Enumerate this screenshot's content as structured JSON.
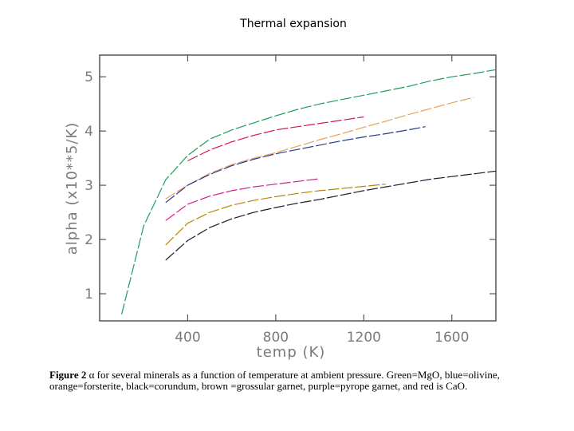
{
  "slide_title": "Thermal expansion",
  "caption": {
    "label": "Figure  2",
    "text": " α for several minerals as a function of temperature at ambient pressure.  Green=MgO, blue=olivine, orange=forsterite, black=corundum, brown =grossular garnet, purple=pyrope garnet, and red is CaO."
  },
  "chart_data": {
    "type": "line",
    "title": "Thermal expansion",
    "xlabel": "temp  (K)",
    "ylabel": "alpha  (x10**5/K)",
    "xlim": [
      0,
      1800
    ],
    "ylim": [
      0.5,
      5.4
    ],
    "xticks": [
      400,
      800,
      1200,
      1600
    ],
    "yticks": [
      1,
      2,
      3,
      4,
      5
    ],
    "grid": false,
    "series": [
      {
        "name": "MgO",
        "color": "#1e9e5a",
        "x": [
          100,
          200,
          300,
          400,
          500,
          600,
          700,
          800,
          900,
          1000,
          1100,
          1200,
          1300,
          1400,
          1500,
          1600,
          1700,
          1800
        ],
        "y": [
          0.62,
          2.25,
          3.1,
          3.55,
          3.85,
          4.02,
          4.15,
          4.28,
          4.4,
          4.5,
          4.58,
          4.66,
          4.74,
          4.82,
          4.92,
          5.0,
          5.06,
          5.13
        ]
      },
      {
        "name": "CaO",
        "color": "#d4145a",
        "x": [
          400,
          500,
          600,
          700,
          800,
          900,
          1000,
          1100,
          1200
        ],
        "y": [
          3.45,
          3.65,
          3.8,
          3.92,
          4.02,
          4.08,
          4.14,
          4.2,
          4.26
        ]
      },
      {
        "name": "forsterite",
        "color": "#e8a05a",
        "x": [
          300,
          400,
          500,
          600,
          700,
          800,
          900,
          1000,
          1100,
          1200,
          1300,
          1400,
          1500,
          1600,
          1700
        ],
        "y": [
          2.75,
          3.0,
          3.22,
          3.38,
          3.5,
          3.6,
          3.72,
          3.84,
          3.95,
          4.07,
          4.18,
          4.3,
          4.41,
          4.52,
          4.62
        ]
      },
      {
        "name": "olivine",
        "color": "#2a3a8c",
        "x": [
          300,
          400,
          500,
          600,
          700,
          800,
          900,
          1000,
          1100,
          1200,
          1300,
          1400,
          1480
        ],
        "y": [
          2.68,
          3.0,
          3.2,
          3.36,
          3.48,
          3.58,
          3.66,
          3.74,
          3.82,
          3.89,
          3.95,
          4.02,
          4.08
        ]
      },
      {
        "name": "pyrope garnet",
        "color": "#d6208e",
        "x": [
          300,
          400,
          500,
          600,
          700,
          800,
          900,
          1000
        ],
        "y": [
          2.35,
          2.65,
          2.8,
          2.9,
          2.97,
          3.02,
          3.07,
          3.12
        ]
      },
      {
        "name": "grossular garnet",
        "color": "#b8860b",
        "x": [
          300,
          400,
          500,
          600,
          700,
          800,
          900,
          1000,
          1100,
          1200,
          1300
        ],
        "y": [
          1.9,
          2.3,
          2.5,
          2.63,
          2.72,
          2.79,
          2.85,
          2.9,
          2.94,
          2.98,
          3.02
        ]
      },
      {
        "name": "corundum",
        "color": "#1a1a33",
        "x": [
          300,
          400,
          500,
          600,
          700,
          800,
          900,
          1000,
          1100,
          1200,
          1300,
          1400,
          1500,
          1600,
          1700,
          1800
        ],
        "y": [
          1.62,
          1.98,
          2.22,
          2.38,
          2.5,
          2.59,
          2.67,
          2.74,
          2.82,
          2.9,
          2.97,
          3.04,
          3.11,
          3.16,
          3.21,
          3.26
        ]
      }
    ]
  }
}
